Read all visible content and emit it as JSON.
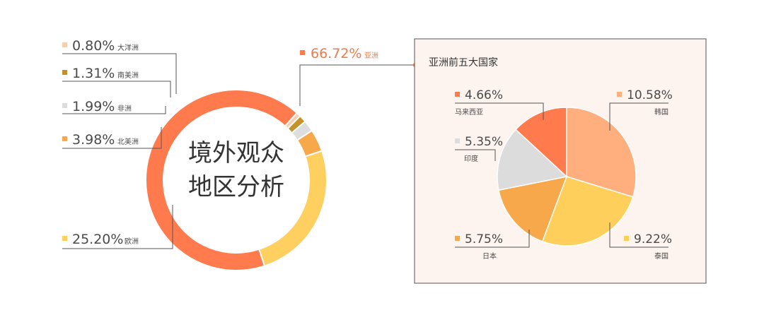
{
  "chart_data": [
    {
      "type": "pie",
      "style": "donut",
      "title": "境外观众地区分析",
      "title_lines": [
        "境外观众",
        "地区分析"
      ],
      "slices": [
        {
          "label": "亚洲",
          "value": 66.72,
          "display": "66.72%",
          "color": "#ff7a4d"
        },
        {
          "label": "欧洲",
          "value": 25.2,
          "display": "25.20%",
          "color": "#ffd060"
        },
        {
          "label": "北美洲",
          "value": 3.98,
          "display": "3.98%",
          "color": "#f7a84a"
        },
        {
          "label": "非洲",
          "value": 1.99,
          "display": "1.99%",
          "color": "#dddddd"
        },
        {
          "label": "南美洲",
          "value": 1.31,
          "display": "1.31%",
          "color": "#c4922a"
        },
        {
          "label": "大洋洲",
          "value": 0.8,
          "display": "0.80%",
          "color": "#f5cfb0"
        }
      ]
    },
    {
      "type": "pie",
      "title": "亚洲前五大国家",
      "slices": [
        {
          "label": "韩国",
          "value": 10.58,
          "display": "10.58%",
          "color": "#ffaf7e"
        },
        {
          "label": "泰国",
          "value": 9.22,
          "display": "9.22%",
          "color": "#ffcf5c"
        },
        {
          "label": "日本",
          "value": 5.75,
          "display": "5.75%",
          "color": "#f7a84a"
        },
        {
          "label": "印度",
          "value": 5.35,
          "display": "5.35%",
          "color": "#dcdcdc"
        },
        {
          "label": "马来西亚",
          "value": 4.66,
          "display": "4.66%",
          "color": "#ff7a4d"
        }
      ]
    }
  ],
  "panel": {
    "background": "#fdf4ef",
    "border": "#555555"
  }
}
